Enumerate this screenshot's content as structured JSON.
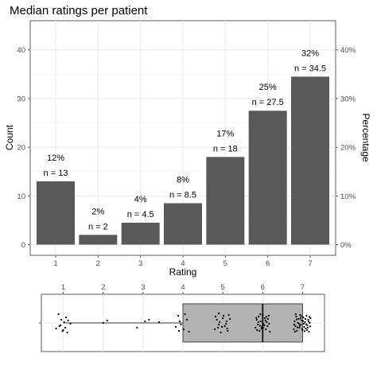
{
  "chart_data": [
    {
      "type": "bar",
      "title": "Median ratings per patient",
      "xlabel": "Rating",
      "ylabel": "Count",
      "y2label": "Percentage",
      "categories": [
        "1",
        "2",
        "3",
        "4",
        "5",
        "6",
        "7"
      ],
      "values": [
        13,
        2,
        4.5,
        8.5,
        18,
        27.5,
        34.5
      ],
      "count_labels": [
        "n = 13",
        "n = 2",
        "n = 4.5",
        "n = 8.5",
        "n = 18",
        "n = 27.5",
        "n = 34.5"
      ],
      "percent_labels": [
        "12%",
        "2%",
        "4%",
        "8%",
        "17%",
        "25%",
        "32%"
      ],
      "ylim": [
        -2.2,
        46
      ],
      "yticks": [
        0,
        10,
        20,
        30,
        40
      ],
      "y2ticks": [
        0,
        10,
        20,
        30,
        40
      ],
      "y2tick_labels": [
        "0%",
        "10%",
        "20%",
        "30%",
        "40%"
      ],
      "grid": true,
      "bar_color": "#595959"
    },
    {
      "type": "boxplot",
      "orientation": "horizontal",
      "xlim": [
        0.45,
        7.55
      ],
      "xticks": [
        1,
        2,
        3,
        4,
        5,
        6,
        7
      ],
      "xtick_labels": [
        "1",
        "2",
        "3",
        "4",
        "5",
        "6",
        "7"
      ],
      "whisker_low": 1,
      "q1": 4,
      "median": 6,
      "q3": 7,
      "whisker_high": 7,
      "box_color": "#b3b3b3",
      "points": [
        [
          0.82,
          0.35
        ],
        [
          0.9,
          0.2
        ],
        [
          1.0,
          0.45
        ],
        [
          1.05,
          0.3
        ],
        [
          1.1,
          0.6
        ],
        [
          0.95,
          -0.2
        ],
        [
          1.12,
          -0.15
        ],
        [
          0.88,
          -0.55
        ],
        [
          1.18,
          0.05
        ],
        [
          1.02,
          -0.05
        ],
        [
          0.93,
          0.15
        ],
        [
          1.07,
          -0.35
        ],
        [
          0.98,
          0.52
        ],
        [
          2.0,
          0.0
        ],
        [
          2.1,
          -0.15
        ],
        [
          2.85,
          0.3
        ],
        [
          3.05,
          -0.1
        ],
        [
          3.15,
          -0.2
        ],
        [
          3.4,
          -0.05
        ],
        [
          3.82,
          0.25
        ],
        [
          3.9,
          0.5
        ],
        [
          3.95,
          0.1
        ],
        [
          4.05,
          -0.55
        ],
        [
          4.1,
          -0.2
        ],
        [
          3.88,
          -0.45
        ],
        [
          4.15,
          0.55
        ],
        [
          3.92,
          -0.1
        ],
        [
          4.02,
          0.4
        ],
        [
          4.8,
          0.4
        ],
        [
          4.9,
          0.1
        ],
        [
          5.0,
          -0.3
        ],
        [
          5.05,
          0.2
        ],
        [
          5.1,
          -0.1
        ],
        [
          4.85,
          -0.2
        ],
        [
          5.12,
          0.5
        ],
        [
          4.95,
          0.6
        ],
        [
          5.15,
          -0.5
        ],
        [
          4.88,
          0.3
        ],
        [
          5.02,
          -0.45
        ],
        [
          4.92,
          -0.05
        ],
        [
          5.08,
          0.05
        ],
        [
          4.98,
          0.25
        ],
        [
          5.18,
          -0.25
        ],
        [
          4.82,
          -0.4
        ],
        [
          5.11,
          0.35
        ],
        [
          4.9,
          -0.6
        ],
        [
          5.82,
          0.3
        ],
        [
          5.85,
          -0.2
        ],
        [
          5.88,
          0.1
        ],
        [
          5.9,
          -0.4
        ],
        [
          5.92,
          0.5
        ],
        [
          5.95,
          -0.1
        ],
        [
          5.98,
          0.25
        ],
        [
          6.0,
          -0.5
        ],
        [
          6.02,
          0.05
        ],
        [
          6.05,
          -0.3
        ],
        [
          6.08,
          0.4
        ],
        [
          6.1,
          -0.05
        ],
        [
          6.12,
          0.2
        ],
        [
          6.15,
          -0.45
        ],
        [
          6.18,
          0.55
        ],
        [
          5.86,
          0.45
        ],
        [
          5.94,
          -0.55
        ],
        [
          6.04,
          0.15
        ],
        [
          6.07,
          -0.15
        ],
        [
          5.97,
          0.35
        ],
        [
          6.13,
          -0.25
        ],
        [
          5.89,
          -0.05
        ],
        [
          6.01,
          0.3
        ],
        [
          6.16,
          0.05
        ],
        [
          5.93,
          0.18
        ],
        [
          6.09,
          -0.38
        ],
        [
          5.84,
          -0.32
        ],
        [
          6.78,
          0.4
        ],
        [
          6.8,
          -0.1
        ],
        [
          6.82,
          0.2
        ],
        [
          6.84,
          -0.4
        ],
        [
          6.86,
          0.5
        ],
        [
          6.88,
          0.0
        ],
        [
          6.9,
          -0.25
        ],
        [
          6.92,
          0.3
        ],
        [
          6.94,
          -0.5
        ],
        [
          6.96,
          0.1
        ],
        [
          6.98,
          -0.15
        ],
        [
          7.0,
          0.45
        ],
        [
          7.02,
          -0.35
        ],
        [
          7.04,
          0.25
        ],
        [
          7.06,
          -0.05
        ],
        [
          7.08,
          0.35
        ],
        [
          7.1,
          -0.45
        ],
        [
          7.12,
          0.15
        ],
        [
          7.14,
          -0.2
        ],
        [
          7.16,
          0.55
        ],
        [
          7.18,
          0.0
        ],
        [
          7.2,
          -0.3
        ],
        [
          6.79,
          0.1
        ],
        [
          6.83,
          -0.55
        ],
        [
          6.87,
          0.28
        ],
        [
          6.91,
          0.05
        ],
        [
          6.95,
          -0.28
        ],
        [
          6.99,
          0.38
        ],
        [
          7.03,
          0.05
        ],
        [
          7.07,
          -0.25
        ],
        [
          7.11,
          0.45
        ],
        [
          7.15,
          -0.08
        ],
        [
          7.19,
          0.22
        ],
        [
          6.85,
          -0.22
        ],
        [
          6.97,
          -0.42
        ],
        [
          7.05,
          0.52
        ],
        [
          7.13,
          0.3
        ],
        [
          6.81,
          0.55
        ],
        [
          6.93,
          0.18
        ],
        [
          7.01,
          -0.12
        ],
        [
          7.09,
          0.08
        ],
        [
          7.17,
          -0.38
        ]
      ]
    }
  ]
}
